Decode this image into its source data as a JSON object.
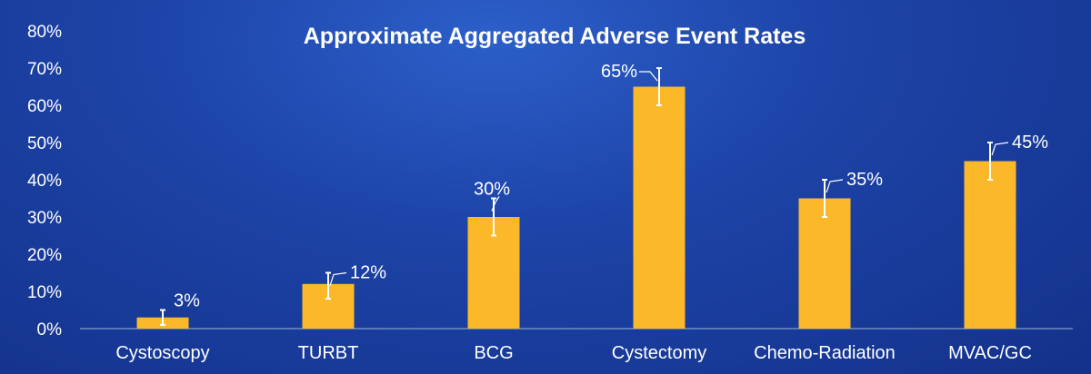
{
  "chart_data": {
    "type": "bar",
    "title": "Approximate Aggregated Adverse Event Rates",
    "categories": [
      "Cystoscopy",
      "TURBT",
      "BCG",
      "Cystectomy",
      "Chemo-Radiation",
      "MVAC/GC"
    ],
    "values": [
      3,
      12,
      30,
      65,
      35,
      45
    ],
    "error_bars": [
      {
        "low": 1,
        "high": 5
      },
      {
        "low": 8,
        "high": 15
      },
      {
        "low": 25,
        "high": 35
      },
      {
        "low": 60,
        "high": 70
      },
      {
        "low": 30,
        "high": 40
      },
      {
        "low": 40,
        "high": 50
      }
    ],
    "data_labels": [
      "3%",
      "12%",
      "30%",
      "65%",
      "35%",
      "45%"
    ],
    "ylim": [
      0,
      80
    ],
    "yticks": [
      "0%",
      "10%",
      "20%",
      "30%",
      "40%",
      "50%",
      "60%",
      "70%",
      "80%"
    ],
    "ytick_values": [
      0,
      10,
      20,
      30,
      40,
      50,
      60,
      70,
      80
    ],
    "xlabel": "",
    "ylabel": "",
    "grid": false,
    "legend": "none",
    "colors": {
      "bar": "#fbb829",
      "error_bar": "#ffffff",
      "text": "#ffffff",
      "background": "#1d44a8"
    }
  }
}
